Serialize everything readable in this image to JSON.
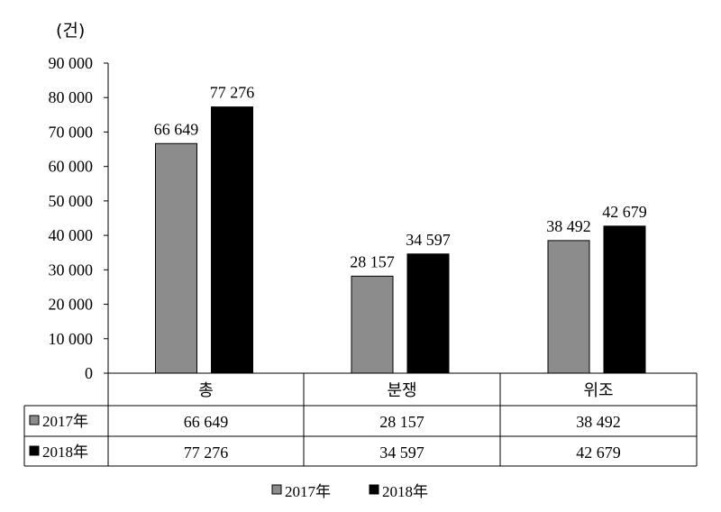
{
  "chart_data": {
    "type": "bar",
    "unit_label": "(건)",
    "categories": [
      "총",
      "분쟁",
      "위조"
    ],
    "series": [
      {
        "name": "2017年",
        "color": "#8c8c8c",
        "values": [
          66649,
          28157,
          38492
        ],
        "labels": [
          "66 649",
          "28 157",
          "38 492"
        ]
      },
      {
        "name": "2018年",
        "color": "#000000",
        "values": [
          77276,
          34597,
          42679
        ],
        "labels": [
          "77 276",
          "34 597",
          "42 679"
        ]
      }
    ],
    "ylim": [
      0,
      90000
    ],
    "yticks": [
      0,
      10000,
      20000,
      30000,
      40000,
      50000,
      60000,
      70000,
      80000,
      90000
    ],
    "ytick_labels": [
      "0",
      "10 000",
      "20 000",
      "30 000",
      "40 000",
      "50 000",
      "60 000",
      "70 000",
      "80 000",
      "90 000"
    ],
    "legend": {
      "placement": "bottom",
      "entries": [
        "2017年",
        "2018年"
      ]
    },
    "data_table": true
  }
}
